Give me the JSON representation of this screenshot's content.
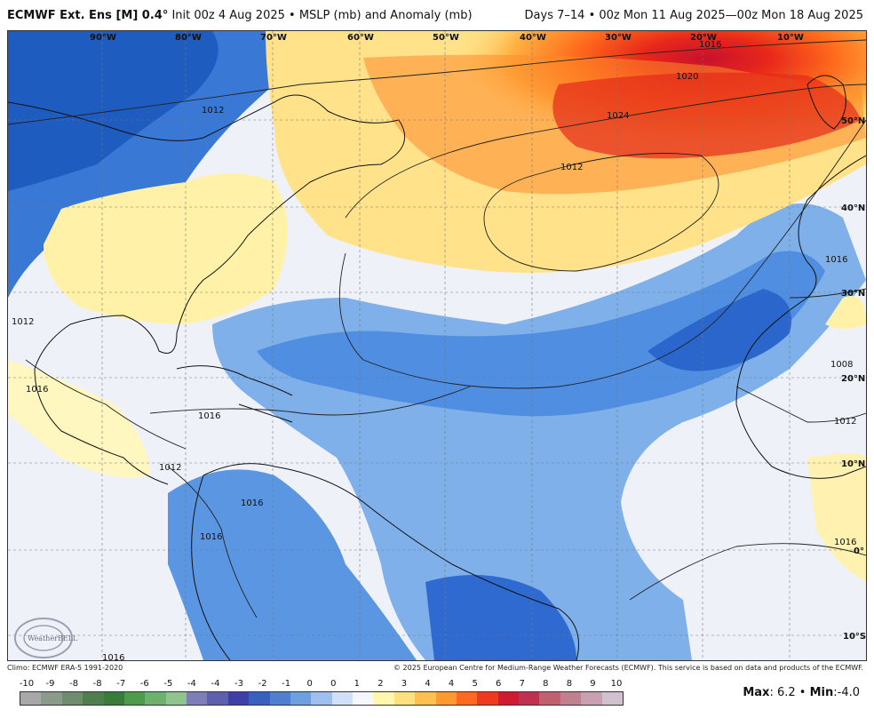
{
  "header": {
    "model": "ECMWF Ext. Ens [M] 0.4",
    "degree": "°",
    "init": "Init 00z 4 Aug 2025",
    "bullet": "•",
    "product": "MSLP (mb) and Anomaly (mb)",
    "valid": "Days 7–14 • 00z Mon 11 Aug 2025—00z Mon 18 Aug 2025"
  },
  "map": {
    "longitudes": [
      "90°W",
      "80°W",
      "70°W",
      "60°W",
      "50°W",
      "40°W",
      "30°W",
      "20°W",
      "10°W"
    ],
    "latitudes": [
      "50°N",
      "40°N",
      "30°N",
      "20°N",
      "10°N",
      "0°",
      "10°S"
    ],
    "isobars": [
      "1012",
      "1016",
      "1020",
      "1024",
      "1012",
      "1016",
      "1016",
      "1012",
      "1016",
      "1008",
      "1012",
      "1016",
      "1012",
      "1016",
      "1016",
      "1016"
    ],
    "logo": "WeatherBELL"
  },
  "footer": {
    "climo": "Climo: ECMWF ERA-5 1991-2020",
    "copyright": "© 2025 European Centre for Medium-Range Weather Forecasts (ECMWF). This service is based on data and products of the ECMWF."
  },
  "legend": {
    "ticks": [
      "-10",
      "-9",
      "-8",
      "-8",
      "-7",
      "-6",
      "-5",
      "-4",
      "-4",
      "-3",
      "-2",
      "-1",
      "0",
      "0",
      "1",
      "2",
      "3",
      "4",
      "4",
      "5",
      "6",
      "7",
      "8",
      "8",
      "9",
      "10"
    ],
    "colors": [
      "#a8a8a8",
      "#8c9a8c",
      "#6e8c6e",
      "#4f7f4f",
      "#3a7a3a",
      "#4e9a4e",
      "#6fb06f",
      "#8fc48f",
      "#7f7fb8",
      "#5f5fb0",
      "#3f3fa8",
      "#3b5fc0",
      "#4f7fd0",
      "#6f9fe0",
      "#9fc0ee",
      "#cfe0f8",
      "#f6f6ff",
      "#fff6b0",
      "#ffe080",
      "#ffc050",
      "#ff9a30",
      "#ff6a20",
      "#f03a20",
      "#d01a30",
      "#c03050",
      "#c06070",
      "#c08090",
      "#c8a0b0",
      "#d0c0d0"
    ],
    "max_label": "Max",
    "max": "6.2",
    "min_label": "Min",
    "min": "-4.0"
  }
}
